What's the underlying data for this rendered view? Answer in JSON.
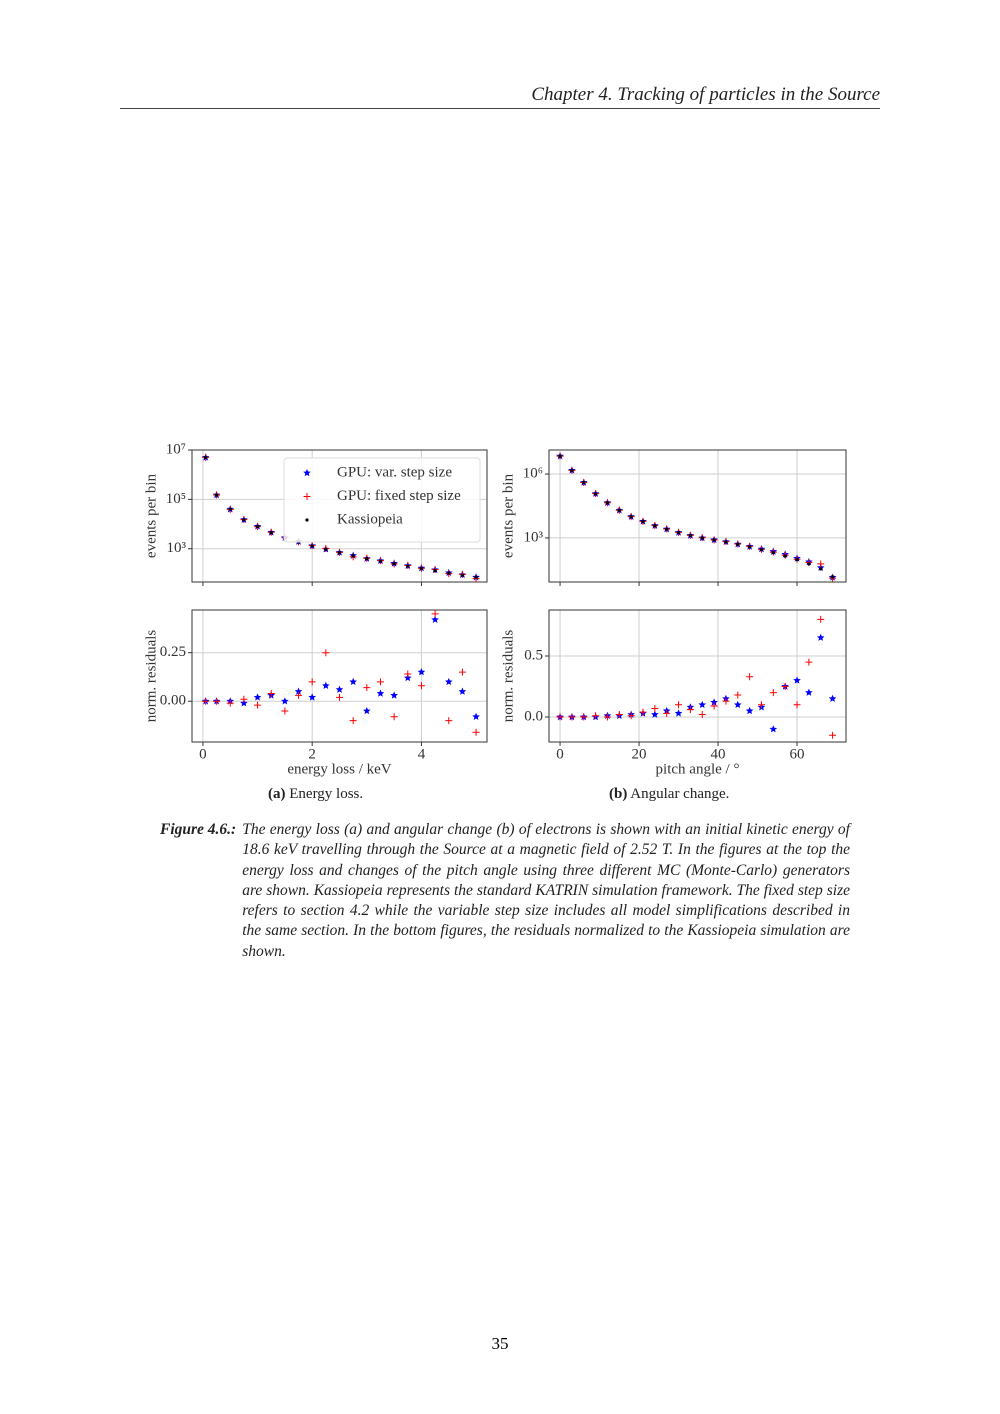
{
  "header": {
    "title": "Chapter 4. Tracking of particles in the Source"
  },
  "chart_data": [
    {
      "type": "scatter",
      "yscale": "log",
      "ylabel": "events per bin",
      "grid": true,
      "legend": "upper right",
      "x": [
        0.05,
        0.25,
        0.5,
        0.75,
        1,
        1.25,
        1.5,
        1.75,
        2,
        2.25,
        2.5,
        2.75,
        3,
        3.25,
        3.5,
        3.75,
        4,
        4.25,
        4.5,
        4.75,
        5
      ],
      "xlim": [
        -0.2,
        5.2
      ],
      "xticks": [
        0,
        2,
        4
      ],
      "ylim": [
        45,
        10000000
      ],
      "yticks": [
        {
          "value": 1000,
          "label": "10³"
        },
        {
          "value": 100000,
          "label": "10⁵"
        },
        {
          "value": 10000000,
          "label": "10⁷"
        }
      ],
      "series": [
        {
          "name": "GPU: var. step size",
          "color": "#0000ff",
          "marker": "star",
          "values": [
            5000000,
            150000,
            40000,
            15000,
            8100,
            4600,
            2800,
            1950,
            1320,
            960,
            710,
            530,
            400,
            325,
            255,
            205,
            165,
            140,
            106,
            88,
            70
          ]
        },
        {
          "name": "GPU: fixed step size",
          "color": "#ff0000",
          "marker": "plus",
          "values": [
            5000000,
            150000,
            39500,
            15100,
            7900,
            4650,
            2750,
            1910,
            1340,
            1040,
            710,
            470,
            410,
            330,
            240,
            210,
            162,
            145,
            98,
            92,
            62
          ]
        },
        {
          "name": "Kassiopeia",
          "color": "#000000",
          "marker": "dot",
          "values": [
            5000000,
            150000,
            40000,
            15000,
            8000,
            4500,
            2800,
            1900,
            1300,
            950,
            700,
            520,
            400,
            320,
            250,
            200,
            160,
            130,
            105,
            85,
            70
          ]
        }
      ]
    },
    {
      "type": "scatter",
      "ylabel": "norm. residuals",
      "xlabel": "energy loss / keV",
      "grid": true,
      "x": [
        0.05,
        0.25,
        0.5,
        0.75,
        1,
        1.25,
        1.5,
        1.75,
        2,
        2.25,
        2.5,
        2.75,
        3,
        3.25,
        3.5,
        3.75,
        4,
        4.25,
        4.5,
        4.75,
        5
      ],
      "xlim": [
        -0.2,
        5.2
      ],
      "xticks": [
        0,
        2,
        4
      ],
      "ylim": [
        -0.21,
        0.47
      ],
      "yticks": [
        {
          "value": 0,
          "label": "0.00"
        },
        0.25
      ],
      "series": [
        {
          "color": "#0000ff",
          "marker": "star",
          "values": [
            0,
            0,
            0,
            -0.01,
            0.02,
            0.03,
            0,
            0.05,
            0.02,
            0.08,
            0.06,
            0.1,
            -0.05,
            0.04,
            0.03,
            0.12,
            0.15,
            0.42,
            0.1,
            0.05,
            -0.08
          ]
        },
        {
          "color": "#ff0000",
          "marker": "plus",
          "values": [
            0,
            0,
            -0.01,
            0.01,
            -0.02,
            0.04,
            -0.05,
            0.03,
            0.1,
            0.25,
            0.02,
            -0.1,
            0.07,
            0.1,
            -0.08,
            0.14,
            0.08,
            0.45,
            -0.1,
            0.15,
            -0.16
          ]
        }
      ]
    },
    {
      "type": "scatter",
      "yscale": "log",
      "ylabel": "events per bin",
      "grid": true,
      "x": [
        0,
        3,
        6,
        9,
        12,
        15,
        18,
        21,
        24,
        27,
        30,
        33,
        36,
        39,
        42,
        45,
        48,
        51,
        54,
        57,
        60,
        63,
        66,
        69
      ],
      "xlim": [
        -2.8,
        72.4
      ],
      "xticks": [
        0,
        20,
        40,
        60
      ],
      "ylim": [
        8.5,
        13500000
      ],
      "yticks": [
        {
          "value": 1000,
          "label": "10³"
        },
        {
          "value": 1000000,
          "label": "10⁶"
        }
      ],
      "series": [
        {
          "color": "#0000ff",
          "marker": "star",
          "values": [
            7000000,
            1500000,
            400000,
            120000,
            45000,
            20000,
            10000,
            6000,
            3800,
            2600,
            1800,
            1310,
            1000,
            810,
            660,
            510,
            395,
            300,
            230,
            170,
            110,
            75,
            40,
            14
          ]
        },
        {
          "color": "#ff0000",
          "marker": "plus",
          "values": [
            7000000,
            1500000,
            400000,
            120000,
            45000,
            20000,
            10000,
            6000,
            3800,
            2620,
            1830,
            1320,
            1020,
            800,
            670,
            520,
            400,
            290,
            215,
            155,
            100,
            70,
            60,
            13
          ]
        },
        {
          "color": "#000000",
          "marker": "dot",
          "values": [
            7000000,
            1500000,
            400000,
            120000,
            45000,
            20000,
            10000,
            6000,
            3800,
            2600,
            1800,
            1300,
            1000,
            800,
            650,
            500,
            380,
            280,
            200,
            140,
            95,
            60,
            35,
            15
          ]
        }
      ]
    },
    {
      "type": "scatter",
      "ylabel": "norm. residuals",
      "xlabel": "pitch angle / °",
      "grid": true,
      "x": [
        0,
        3,
        6,
        9,
        12,
        15,
        18,
        21,
        24,
        27,
        30,
        33,
        36,
        39,
        42,
        45,
        48,
        51,
        54,
        57,
        60,
        63,
        66,
        69
      ],
      "xlim": [
        -2.8,
        72.4
      ],
      "xticks": [
        0,
        20,
        40,
        60
      ],
      "ylim": [
        -0.205,
        0.877
      ],
      "yticks": [
        {
          "value": 0,
          "label": "0.0"
        },
        0.5
      ],
      "series": [
        {
          "color": "#0000ff",
          "marker": "star",
          "values": [
            0,
            0,
            0,
            0,
            0.01,
            0.01,
            0.02,
            0.03,
            0.02,
            0.05,
            0.03,
            0.08,
            0.1,
            0.12,
            0.15,
            0.1,
            0.05,
            0.08,
            -0.1,
            0.25,
            0.3,
            0.2,
            0.65,
            0.15
          ]
        },
        {
          "color": "#ff0000",
          "marker": "plus",
          "values": [
            0,
            0,
            0,
            0.01,
            0,
            0.02,
            0.01,
            0.04,
            0.07,
            0.03,
            0.1,
            0.06,
            0.02,
            0.09,
            0.13,
            0.18,
            0.33,
            0.1,
            0.2,
            0.25,
            0.1,
            0.45,
            0.8,
            -0.15
          ]
        }
      ]
    }
  ],
  "subcaptions": [
    {
      "label": "(a)",
      "text": "Energy loss."
    },
    {
      "label": "(b)",
      "text": "Angular change."
    }
  ],
  "caption": {
    "label": "Figure 4.6.:",
    "text": "The energy loss (a) and angular change (b) of electrons is shown with an initial kinetic energy of 18.6 keV travelling through the Source at a magnetic field of 2.52 T. In the figures at the top the energy loss and changes of the pitch angle using three different MC (Monte-Carlo) generators are shown. Kassiopeia represents the standard KATRIN simulation framework. The fixed step size refers to section 4.2 while the variable step size includes all model simplifications described in the same section. In the bottom figures, the residuals normalized to the Kassiopeia simulation are shown."
  },
  "page_number": "35"
}
